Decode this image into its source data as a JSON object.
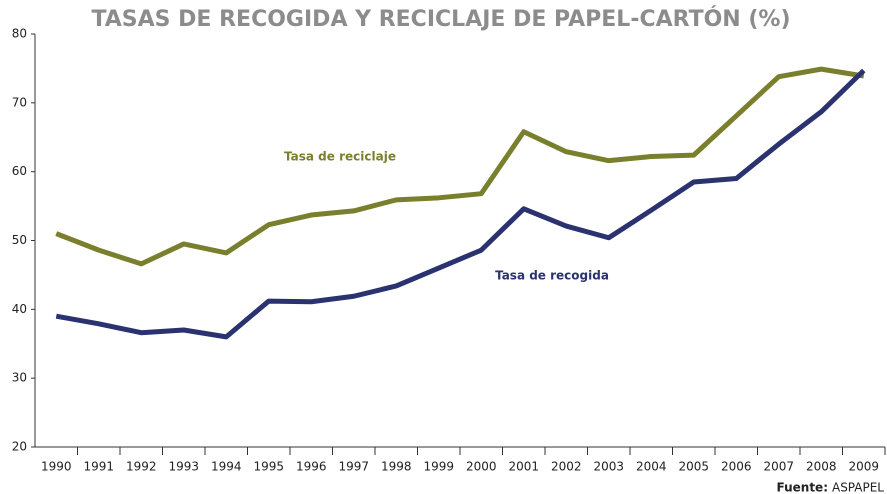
{
  "chart_data": {
    "type": "line",
    "title": "TASAS DE  RECOGIDA Y RECICLAJE DE PAPEL-CARTÓN (%)",
    "categories": [
      "1990",
      "1991",
      "1992",
      "1993",
      "1994",
      "1995",
      "1996",
      "1997",
      "1998",
      "1999",
      "2000",
      "2001",
      "2002",
      "2003",
      "2004",
      "2005",
      "2006",
      "2007",
      "2008",
      "2009"
    ],
    "series": [
      {
        "name": "Tasa de reciclaje",
        "color": "#7a7f2e",
        "values": [
          51.0,
          48.6,
          46.6,
          49.5,
          48.2,
          52.3,
          53.7,
          54.3,
          55.9,
          56.2,
          56.8,
          65.8,
          62.9,
          61.6,
          62.2,
          62.4,
          68.1,
          73.8,
          74.9,
          73.9
        ]
      },
      {
        "name": "Tasa de recogida",
        "color": "#2b3270",
        "values": [
          39.0,
          37.9,
          36.6,
          37.0,
          36.0,
          41.2,
          41.1,
          41.9,
          43.4,
          46.0,
          48.6,
          54.6,
          52.1,
          50.4,
          54.4,
          58.5,
          59.0,
          64.0,
          68.7,
          74.7
        ]
      }
    ],
    "ylim": [
      20,
      80
    ],
    "yticks": [
      20,
      30,
      40,
      50,
      60,
      70,
      80
    ],
    "source": {
      "label": "Fuente:",
      "text": "ASPAPEL"
    }
  }
}
